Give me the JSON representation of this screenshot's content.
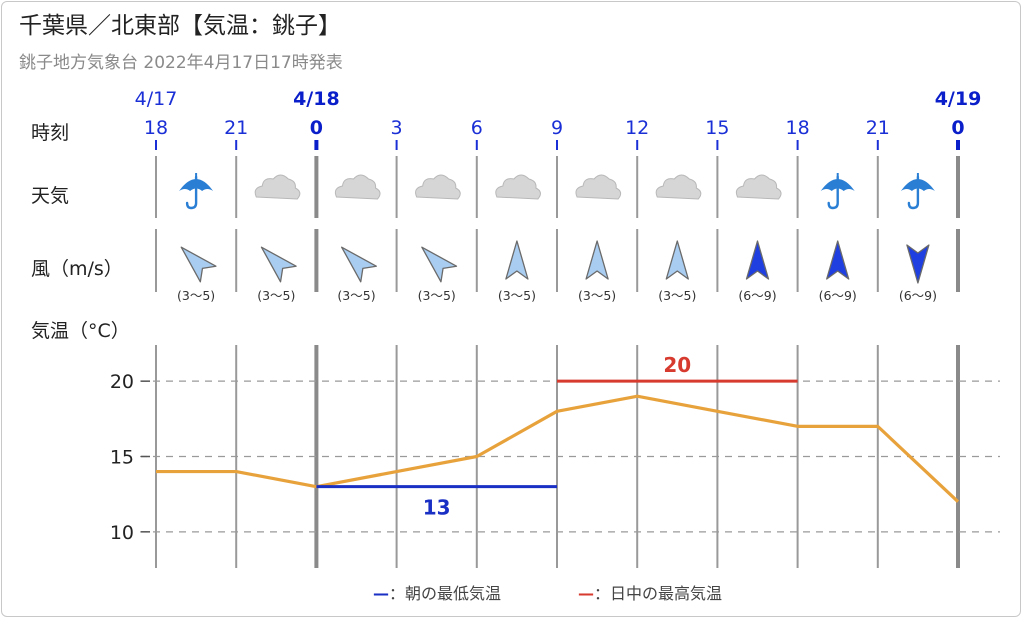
{
  "header": {
    "title": "千葉県／北東部【気温：銚子】",
    "subtitle": "銚子地方気象台 2022年4月17日17時発表"
  },
  "rows": {
    "time_label": "時刻",
    "weather_label": "天気",
    "wind_label": "風（m/s）",
    "temp_label": "気温（°C）"
  },
  "dates": [
    {
      "label": "4/17",
      "col": 0,
      "bold": false
    },
    {
      "label": "4/18",
      "col": 2,
      "bold": true
    },
    {
      "label": "4/19",
      "col": 10,
      "bold": true
    }
  ],
  "hours": [
    "18",
    "21",
    "0",
    "3",
    "6",
    "9",
    "12",
    "15",
    "18",
    "21",
    "0"
  ],
  "day_boundary_cols": [
    2,
    10
  ],
  "weather": [
    "umbrella-icon",
    "cloud-icon",
    "cloud-icon",
    "cloud-icon",
    "cloud-icon",
    "cloud-icon",
    "cloud-icon",
    "cloud-icon",
    "umbrella-icon",
    "umbrella-icon"
  ],
  "wind": [
    {
      "dir": "nw",
      "speed": "(3〜5)",
      "strong": false
    },
    {
      "dir": "nw",
      "speed": "(3〜5)",
      "strong": false
    },
    {
      "dir": "nw",
      "speed": "(3〜5)",
      "strong": false
    },
    {
      "dir": "nw",
      "speed": "(3〜5)",
      "strong": false
    },
    {
      "dir": "n",
      "speed": "(3〜5)",
      "strong": false
    },
    {
      "dir": "n",
      "speed": "(3〜5)",
      "strong": false
    },
    {
      "dir": "n",
      "speed": "(3〜5)",
      "strong": false
    },
    {
      "dir": "n",
      "speed": "(6〜9)",
      "strong": true
    },
    {
      "dir": "n",
      "speed": "(6〜9)",
      "strong": true
    },
    {
      "dir": "s",
      "speed": "(6〜9)",
      "strong": true
    }
  ],
  "colors": {
    "line": "#e8a23c",
    "min": "#1a2fc4",
    "max": "#d73a2e",
    "wind_light": "#a9cdf0",
    "wind_strong": "#1f3fe0",
    "umbrella": "#2a7fd4",
    "cloud": "#c9c9c9"
  },
  "chart_data": {
    "type": "line",
    "x": [
      "18",
      "21",
      "0",
      "3",
      "6",
      "9",
      "12",
      "15",
      "18",
      "21",
      "0"
    ],
    "series": [
      {
        "values": [
          14,
          14,
          13,
          14,
          15,
          18,
          19,
          18,
          17,
          17,
          12
        ]
      }
    ],
    "ylim": [
      7.6,
      22.4
    ],
    "yticks": [
      10,
      15,
      20
    ],
    "grid": true,
    "min_temp": {
      "value": 13,
      "label": "13",
      "from_col": 2,
      "to_col": 5
    },
    "max_temp": {
      "value": 20,
      "label": "20",
      "from_col": 5,
      "to_col": 8
    }
  },
  "legend": {
    "min_dash": "—",
    "min_text": "：朝の最低気温",
    "max_dash": "—",
    "max_text": "：日中の最高気温"
  }
}
